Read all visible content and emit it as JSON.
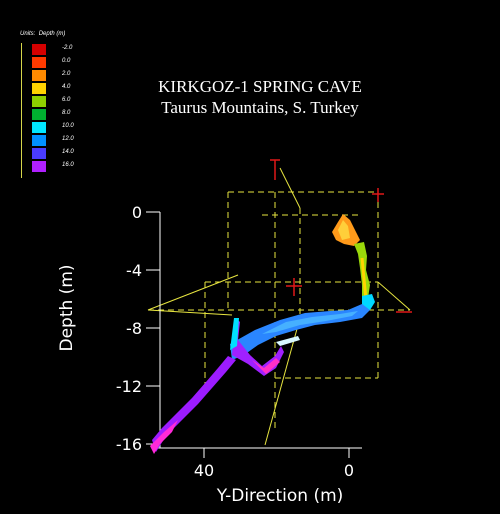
{
  "title": "KIRKGOZ-1 SPRING CAVE",
  "subtitle": "Taurus Mountains, S. Turkey",
  "legend": {
    "units_label": "Units:",
    "quantity_label": "Depth (m)",
    "items": [
      {
        "label": "-2.0",
        "color": "#d40000"
      },
      {
        "label": "0.0",
        "color": "#ff3a00"
      },
      {
        "label": "2.0",
        "color": "#ff8a00"
      },
      {
        "label": "4.0",
        "color": "#ffd200"
      },
      {
        "label": "6.0",
        "color": "#8ed000"
      },
      {
        "label": "8.0",
        "color": "#00b030"
      },
      {
        "label": "10.0",
        "color": "#00e6ff"
      },
      {
        "label": "12.0",
        "color": "#0090ff"
      },
      {
        "label": "14.0",
        "color": "#4a3cff"
      },
      {
        "label": "16.0",
        "color": "#b020ff"
      }
    ]
  },
  "axes": {
    "depth_title": "Depth (m)",
    "y_title": "Y-Direction (m)",
    "depth_ticks": [
      "0",
      "-4",
      "-8",
      "-12",
      "-16"
    ],
    "y_ticks": [
      "40",
      "0"
    ]
  }
}
